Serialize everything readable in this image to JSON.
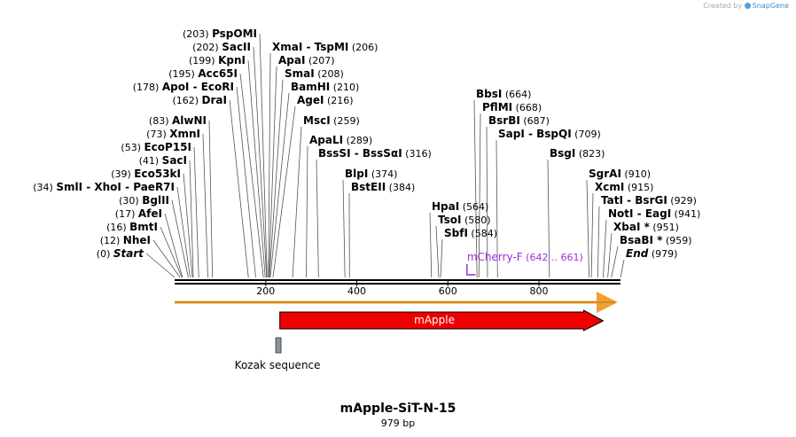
{
  "credit": {
    "prefix": "Created by",
    "brand": "SnapGene"
  },
  "map": {
    "name": "mApple-SiT-N-15",
    "length_label": "979 bp",
    "length": 979
  },
  "axis": {
    "ticks": [
      200,
      400,
      600,
      800
    ]
  },
  "sites_left": [
    {
      "name": "PspOMI",
      "pos": "(203)",
      "site": 203
    },
    {
      "name": "SacII",
      "pos": "(202)",
      "site": 202
    },
    {
      "name": "KpnI",
      "pos": "(199)",
      "site": 199
    },
    {
      "name": "Acc65I",
      "pos": "(195)",
      "site": 195
    },
    {
      "name": "ApoI  -  EcoRI",
      "pos": "(178)",
      "site": 178
    },
    {
      "name": "DraI",
      "pos": "(162)",
      "site": 162
    },
    {
      "name": "AlwNI",
      "pos": "(83)",
      "site": 83
    },
    {
      "name": "XmnI",
      "pos": "(73)",
      "site": 73
    },
    {
      "name": "EcoP15I",
      "pos": "(53)",
      "site": 53
    },
    {
      "name": "SacI",
      "pos": "(41)",
      "site": 41
    },
    {
      "name": "Eco53kI",
      "pos": "(39)",
      "site": 39
    },
    {
      "name": "SmlI  -  XhoI  -  PaeR7I",
      "pos": "(34)",
      "site": 34
    },
    {
      "name": "BglII",
      "pos": "(30)",
      "site": 30
    },
    {
      "name": "AfeI",
      "pos": "(17)",
      "site": 17
    },
    {
      "name": "BmtI",
      "pos": "(16)",
      "site": 16
    },
    {
      "name": "NheI",
      "pos": "(12)",
      "site": 12
    },
    {
      "name": "Start",
      "pos": "(0)",
      "site": 0
    }
  ],
  "sites_right": [
    {
      "name": "XmaI  -  TspMI",
      "pos": "(206)",
      "site": 206
    },
    {
      "name": "ApaI",
      "pos": "(207)",
      "site": 207
    },
    {
      "name": "SmaI",
      "pos": "(208)",
      "site": 208
    },
    {
      "name": "BamHI",
      "pos": "(210)",
      "site": 210
    },
    {
      "name": "AgeI",
      "pos": "(216)",
      "site": 216
    },
    {
      "name": "MscI",
      "pos": "(259)",
      "site": 259
    },
    {
      "name": "ApaLI",
      "pos": "(289)",
      "site": 289
    },
    {
      "name": "BssSI  -  BssSαI",
      "pos": "(316)",
      "site": 316
    },
    {
      "name": "BlpI",
      "pos": "(374)",
      "site": 374
    },
    {
      "name": "BstEII",
      "pos": "(384)",
      "site": 384
    },
    {
      "name": "HpaI",
      "pos": "(564)",
      "site": 564
    },
    {
      "name": "TsoI",
      "pos": "(580)",
      "site": 580
    },
    {
      "name": "SbfI",
      "pos": "(584)",
      "site": 584
    },
    {
      "name": "BbsI",
      "pos": "(664)",
      "site": 664
    },
    {
      "name": "PflMI",
      "pos": "(668)",
      "site": 668
    },
    {
      "name": "BsrBI",
      "pos": "(687)",
      "site": 687
    },
    {
      "name": "SapI  -  BspQI",
      "pos": "(709)",
      "site": 709
    },
    {
      "name": "BsgI",
      "pos": "(823)",
      "site": 823
    },
    {
      "name": "SgrAI",
      "pos": "(910)",
      "site": 910
    },
    {
      "name": "XcmI",
      "pos": "(915)",
      "site": 915
    },
    {
      "name": "TatI  -  BsrGI",
      "pos": "(929)",
      "site": 929
    },
    {
      "name": "NotI  -  EagI",
      "pos": "(941)",
      "site": 941
    },
    {
      "name": "XbaI *",
      "pos": "(951)",
      "site": 951
    },
    {
      "name": "BsaBI *",
      "pos": "(959)",
      "site": 959
    },
    {
      "name": "End",
      "pos": "(979)",
      "site": 979
    }
  ],
  "primer": {
    "name": "mCherry-F",
    "range": "(642 .. 661)",
    "start": 642,
    "end": 661,
    "color": "#9b30d9"
  },
  "features": {
    "orf": {
      "start": 0,
      "end": 979,
      "color": "#f0a030"
    },
    "mApple": {
      "label": "mApple",
      "start": 231,
      "end": 941,
      "color": "#ee0000"
    },
    "kozak": {
      "label": "Kozak sequence",
      "start": 222,
      "end": 230,
      "color": "#8a949c"
    }
  }
}
